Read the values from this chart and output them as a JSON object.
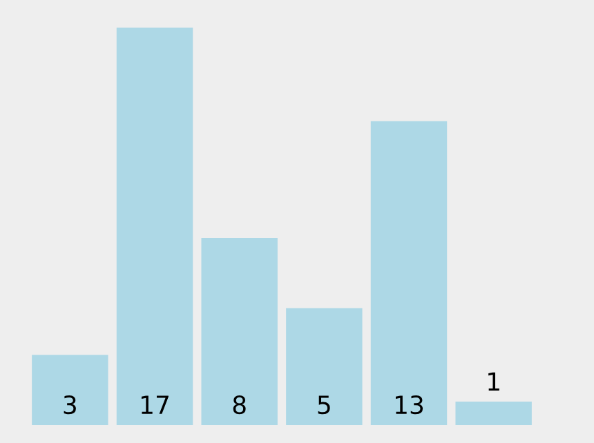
{
  "chart_data": {
    "type": "bar",
    "categories": [
      null,
      null,
      null,
      null,
      null,
      null
    ],
    "values": [
      3,
      17,
      8,
      5,
      13,
      1
    ],
    "color": "#add8e6",
    "data_labels": true,
    "grid": false,
    "legend": false
  }
}
